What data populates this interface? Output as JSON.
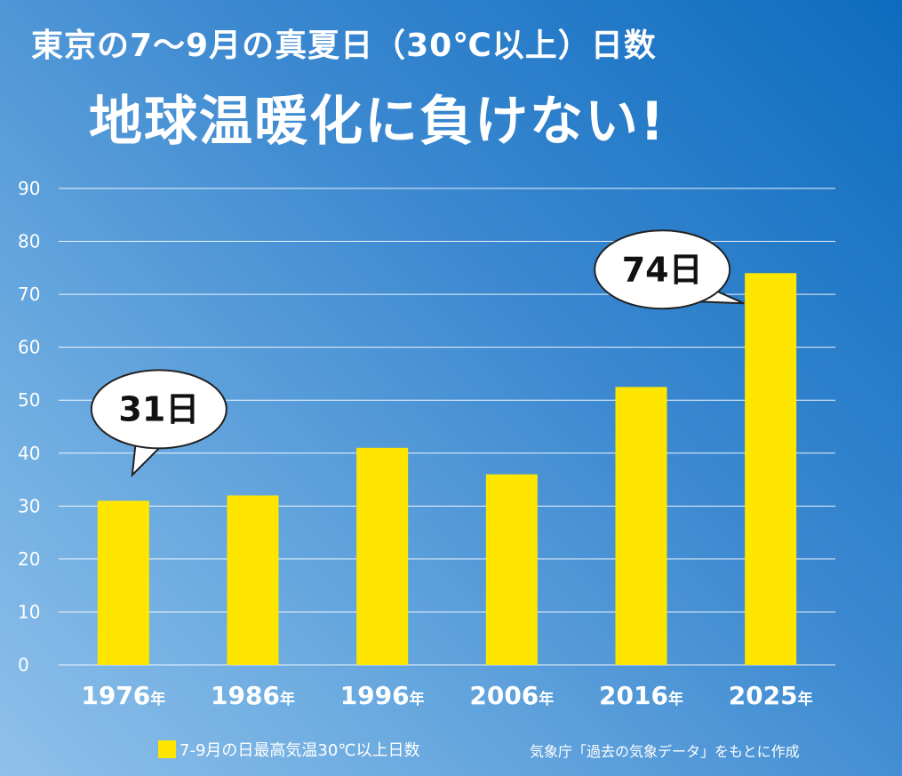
{
  "title": "東京の7～9月の真夏日（30℃以上）日数",
  "subtitle": "地球温暖化に負けない!",
  "legend_label": "7-9月の日最高気温30℃以上日数",
  "source": "気象庁「過去の気象データ」をもとに作成",
  "colors": {
    "bar": "#ffe600",
    "grid": "#ffffff",
    "text": "#ffffff",
    "callout_text": "#111111"
  },
  "chart_data": {
    "type": "bar",
    "categories": [
      "1976",
      "1986",
      "1996",
      "2006",
      "2016",
      "2025"
    ],
    "category_suffix": "年",
    "values": [
      31,
      32,
      41,
      36,
      52.5,
      74
    ],
    "ylim": [
      0,
      90
    ],
    "yticks": [
      0,
      10,
      20,
      30,
      40,
      50,
      60,
      70,
      80,
      90
    ],
    "grid": true,
    "legend_position": "bottom-left",
    "annotations": [
      {
        "category": "1976",
        "text": "31日"
      },
      {
        "category": "2025",
        "text": "74日"
      }
    ]
  }
}
